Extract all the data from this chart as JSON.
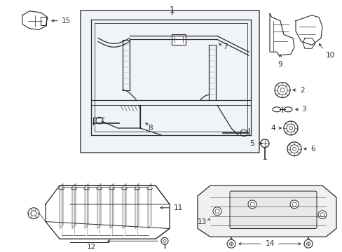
{
  "bg_color": "#ffffff",
  "box_bg": "#f0f4f8",
  "line_color": "#2a2a2a",
  "label_color": "#000000",
  "figsize": [
    4.89,
    3.6
  ],
  "dpi": 100
}
